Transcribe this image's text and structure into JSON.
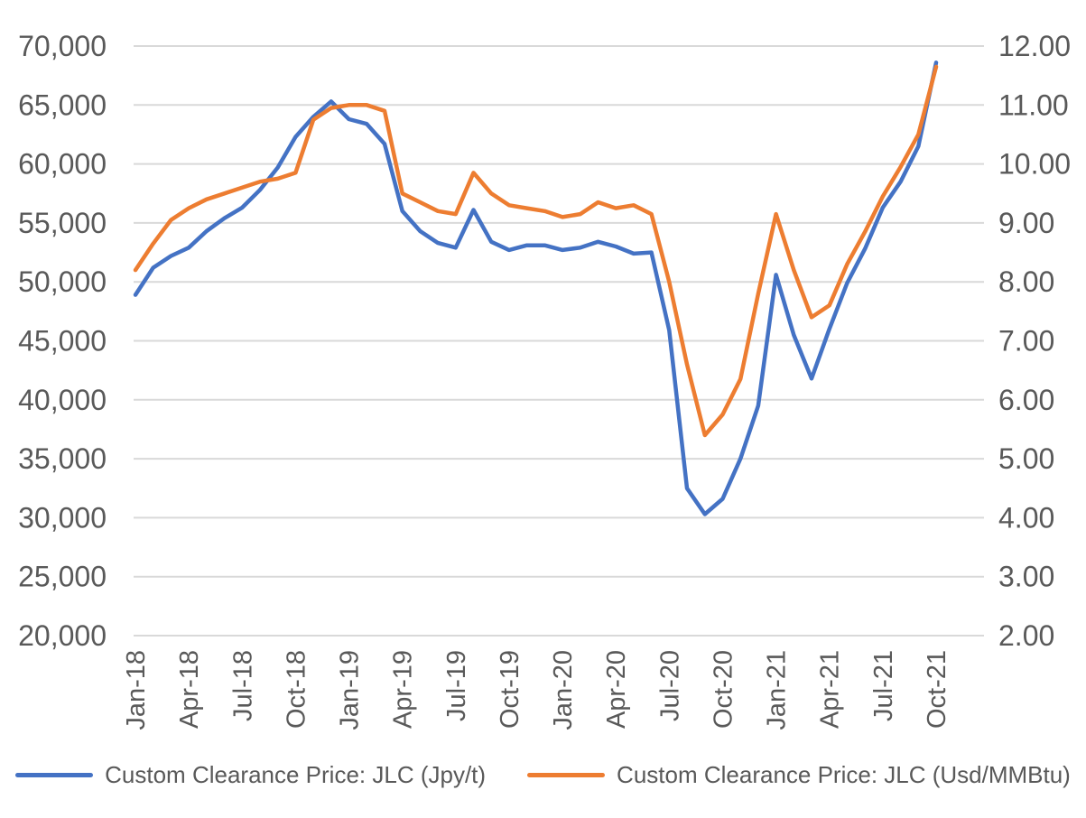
{
  "styles": {
    "background": "#FFFFFF",
    "text_color": "#595959",
    "gridline_color": "#D9D9D9",
    "blue": "#4472C4",
    "orange": "#ED7D31"
  },
  "legend": {
    "items": [
      {
        "label": "Custom Clearance Price: JLC (Jpy/t)",
        "color": "#4472C4"
      },
      {
        "label": "Custom Clearance Price: JLC (Usd/MMBtu)",
        "color": "#ED7D31"
      }
    ]
  },
  "chart_data": {
    "type": "line",
    "title": "",
    "xlabel": "",
    "ylabel_left": "",
    "ylabel_right": "",
    "grid": "horizontal",
    "legend_position": "bottom",
    "x": [
      "Jan-18",
      "Feb-18",
      "Mar-18",
      "Apr-18",
      "May-18",
      "Jun-18",
      "Jul-18",
      "Aug-18",
      "Sep-18",
      "Oct-18",
      "Nov-18",
      "Dec-18",
      "Jan-19",
      "Feb-19",
      "Mar-19",
      "Apr-19",
      "May-19",
      "Jun-19",
      "Jul-19",
      "Aug-19",
      "Sep-19",
      "Oct-19",
      "Nov-19",
      "Dec-19",
      "Jan-20",
      "Feb-20",
      "Mar-20",
      "Apr-20",
      "May-20",
      "Jun-20",
      "Jul-20",
      "Aug-20",
      "Sep-20",
      "Oct-20",
      "Nov-20",
      "Dec-20",
      "Jan-21",
      "Feb-21",
      "Mar-21",
      "Apr-21",
      "May-21",
      "Jun-21",
      "Jul-21",
      "Aug-21",
      "Sep-21",
      "Oct-21"
    ],
    "series": [
      {
        "name": "Custom Clearance Price: JLC (Jpy/t)",
        "axis": "left",
        "color": "#4472C4",
        "values": [
          48900,
          51200,
          52200,
          52900,
          54300,
          55400,
          56300,
          57800,
          59700,
          62300,
          64000,
          65300,
          63800,
          63400,
          61700,
          56000,
          54300,
          53300,
          52900,
          56100,
          53400,
          52700,
          53100,
          53100,
          52700,
          52900,
          53400,
          53000,
          52400,
          52500,
          45900,
          32500,
          30300,
          31600,
          35000,
          39500,
          50600,
          45500,
          41800,
          46000,
          49900,
          52800,
          56300,
          58500,
          61500,
          68600
        ]
      },
      {
        "name": "Custom Clearance Price: JLC (Usd/MMBtu)",
        "axis": "right",
        "color": "#ED7D31",
        "values": [
          8.2,
          8.65,
          9.05,
          9.25,
          9.4,
          9.5,
          9.6,
          9.7,
          9.75,
          9.85,
          10.75,
          10.95,
          11.0,
          11.0,
          10.9,
          9.5,
          9.35,
          9.2,
          9.15,
          9.85,
          9.5,
          9.3,
          9.25,
          9.2,
          9.1,
          9.15,
          9.35,
          9.25,
          9.3,
          9.15,
          8.0,
          6.6,
          5.4,
          5.75,
          6.35,
          7.8,
          9.15,
          8.2,
          7.4,
          7.6,
          8.3,
          8.85,
          9.45,
          9.95,
          10.5,
          11.65
        ]
      }
    ],
    "left_axis": {
      "min": 20000,
      "max": 70000,
      "step": 5000,
      "tick_labels": [
        "70,000",
        "65,000",
        "60,000",
        "55,000",
        "50,000",
        "45,000",
        "40,000",
        "35,000",
        "30,000",
        "25,000",
        "20,000"
      ]
    },
    "right_axis": {
      "min": 2,
      "max": 12,
      "step": 1,
      "tick_labels": [
        "12.00",
        "11.00",
        "10.00",
        "9.00",
        "8.00",
        "7.00",
        "6.00",
        "5.00",
        "4.00",
        "3.00",
        "2.00"
      ]
    },
    "x_axis": {
      "tick_every": 3,
      "tick_labels": [
        "Jan-18",
        "Apr-18",
        "Jul-18",
        "Oct-18",
        "Jan-19",
        "Apr-19",
        "Jul-19",
        "Oct-19",
        "Jan-20",
        "Apr-20",
        "Jul-20",
        "Oct-20",
        "Jan-21",
        "Apr-21",
        "Jul-21",
        "Oct-21"
      ]
    }
  }
}
